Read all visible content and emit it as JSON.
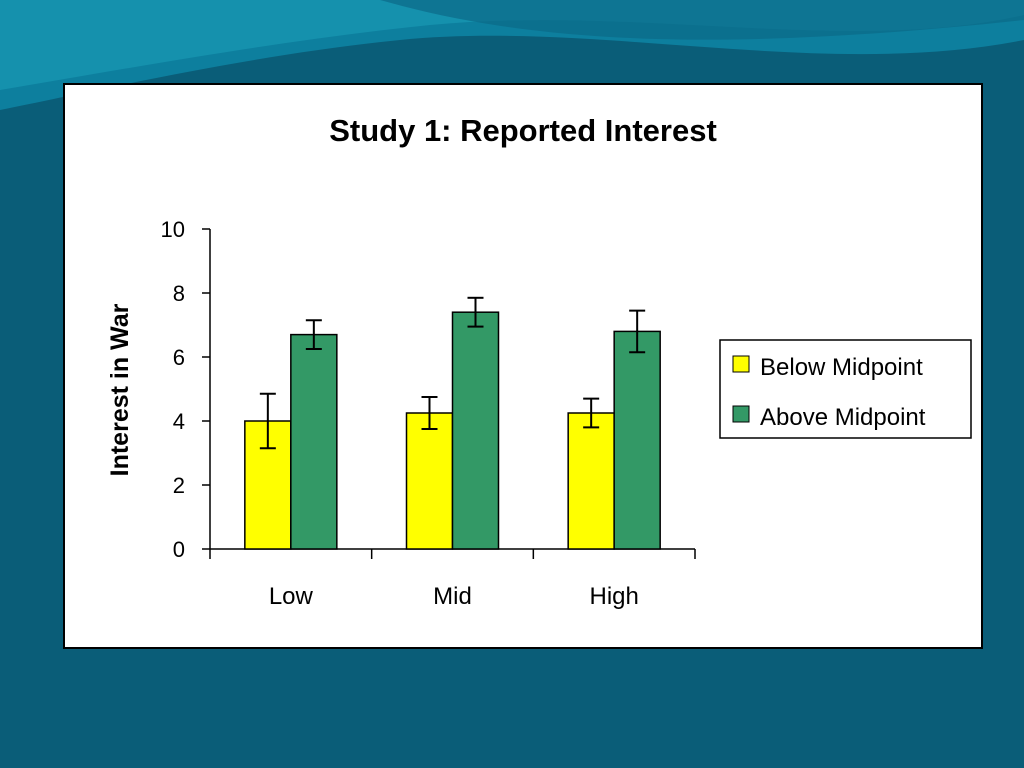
{
  "colors": {
    "background": "#0a5d78",
    "wave_light": "#1a9cb8",
    "wave_mid": "#0d7f9e",
    "below_midpoint": "#ffff00",
    "above_midpoint": "#339966"
  },
  "chart_data": {
    "type": "bar",
    "title": "Study 1: Reported Interest",
    "xlabel": "",
    "ylabel": "Interest in War",
    "categories": [
      "Low",
      "Mid",
      "High"
    ],
    "ylim": [
      0,
      10
    ],
    "yticks": [
      "0",
      "2",
      "4",
      "6",
      "8",
      "10"
    ],
    "series": [
      {
        "name": "Below Midpoint",
        "color": "#ffff00",
        "values": [
          4.0,
          4.25,
          4.25
        ],
        "errors": [
          0.85,
          0.5,
          0.45
        ]
      },
      {
        "name": "Above Midpoint",
        "color": "#339966",
        "values": [
          6.7,
          7.4,
          6.8
        ],
        "errors": [
          0.45,
          0.45,
          0.65
        ]
      }
    ],
    "legend_position": "right",
    "grid": false
  }
}
